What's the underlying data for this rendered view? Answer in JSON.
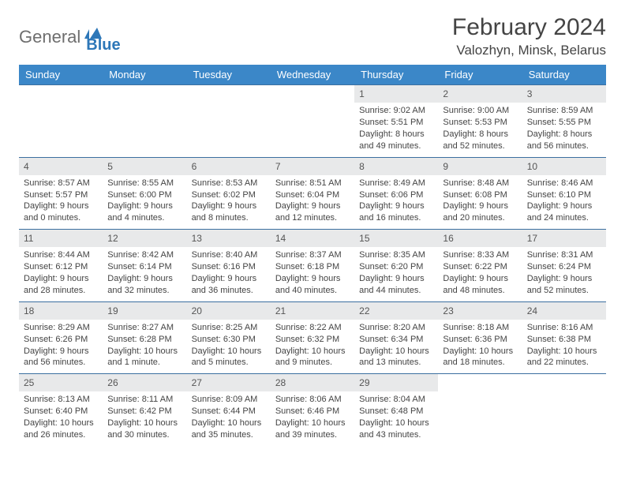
{
  "logo": {
    "part1": "General",
    "part2": "Blue"
  },
  "title": "February 2024",
  "location": "Valozhyn, Minsk, Belarus",
  "colors": {
    "header_bg": "#3b87c8",
    "row_border": "#3b6fa0",
    "daynum_bg": "#e8e9ea",
    "logo_gray": "#6e6e6e",
    "logo_blue": "#2d77b8"
  },
  "weekdays": [
    "Sunday",
    "Monday",
    "Tuesday",
    "Wednesday",
    "Thursday",
    "Friday",
    "Saturday"
  ],
  "weeks": [
    [
      null,
      null,
      null,
      null,
      {
        "n": "1",
        "sr": "Sunrise: 9:02 AM",
        "ss": "Sunset: 5:51 PM",
        "d1": "Daylight: 8 hours",
        "d2": "and 49 minutes."
      },
      {
        "n": "2",
        "sr": "Sunrise: 9:00 AM",
        "ss": "Sunset: 5:53 PM",
        "d1": "Daylight: 8 hours",
        "d2": "and 52 minutes."
      },
      {
        "n": "3",
        "sr": "Sunrise: 8:59 AM",
        "ss": "Sunset: 5:55 PM",
        "d1": "Daylight: 8 hours",
        "d2": "and 56 minutes."
      }
    ],
    [
      {
        "n": "4",
        "sr": "Sunrise: 8:57 AM",
        "ss": "Sunset: 5:57 PM",
        "d1": "Daylight: 9 hours",
        "d2": "and 0 minutes."
      },
      {
        "n": "5",
        "sr": "Sunrise: 8:55 AM",
        "ss": "Sunset: 6:00 PM",
        "d1": "Daylight: 9 hours",
        "d2": "and 4 minutes."
      },
      {
        "n": "6",
        "sr": "Sunrise: 8:53 AM",
        "ss": "Sunset: 6:02 PM",
        "d1": "Daylight: 9 hours",
        "d2": "and 8 minutes."
      },
      {
        "n": "7",
        "sr": "Sunrise: 8:51 AM",
        "ss": "Sunset: 6:04 PM",
        "d1": "Daylight: 9 hours",
        "d2": "and 12 minutes."
      },
      {
        "n": "8",
        "sr": "Sunrise: 8:49 AM",
        "ss": "Sunset: 6:06 PM",
        "d1": "Daylight: 9 hours",
        "d2": "and 16 minutes."
      },
      {
        "n": "9",
        "sr": "Sunrise: 8:48 AM",
        "ss": "Sunset: 6:08 PM",
        "d1": "Daylight: 9 hours",
        "d2": "and 20 minutes."
      },
      {
        "n": "10",
        "sr": "Sunrise: 8:46 AM",
        "ss": "Sunset: 6:10 PM",
        "d1": "Daylight: 9 hours",
        "d2": "and 24 minutes."
      }
    ],
    [
      {
        "n": "11",
        "sr": "Sunrise: 8:44 AM",
        "ss": "Sunset: 6:12 PM",
        "d1": "Daylight: 9 hours",
        "d2": "and 28 minutes."
      },
      {
        "n": "12",
        "sr": "Sunrise: 8:42 AM",
        "ss": "Sunset: 6:14 PM",
        "d1": "Daylight: 9 hours",
        "d2": "and 32 minutes."
      },
      {
        "n": "13",
        "sr": "Sunrise: 8:40 AM",
        "ss": "Sunset: 6:16 PM",
        "d1": "Daylight: 9 hours",
        "d2": "and 36 minutes."
      },
      {
        "n": "14",
        "sr": "Sunrise: 8:37 AM",
        "ss": "Sunset: 6:18 PM",
        "d1": "Daylight: 9 hours",
        "d2": "and 40 minutes."
      },
      {
        "n": "15",
        "sr": "Sunrise: 8:35 AM",
        "ss": "Sunset: 6:20 PM",
        "d1": "Daylight: 9 hours",
        "d2": "and 44 minutes."
      },
      {
        "n": "16",
        "sr": "Sunrise: 8:33 AM",
        "ss": "Sunset: 6:22 PM",
        "d1": "Daylight: 9 hours",
        "d2": "and 48 minutes."
      },
      {
        "n": "17",
        "sr": "Sunrise: 8:31 AM",
        "ss": "Sunset: 6:24 PM",
        "d1": "Daylight: 9 hours",
        "d2": "and 52 minutes."
      }
    ],
    [
      {
        "n": "18",
        "sr": "Sunrise: 8:29 AM",
        "ss": "Sunset: 6:26 PM",
        "d1": "Daylight: 9 hours",
        "d2": "and 56 minutes."
      },
      {
        "n": "19",
        "sr": "Sunrise: 8:27 AM",
        "ss": "Sunset: 6:28 PM",
        "d1": "Daylight: 10 hours",
        "d2": "and 1 minute."
      },
      {
        "n": "20",
        "sr": "Sunrise: 8:25 AM",
        "ss": "Sunset: 6:30 PM",
        "d1": "Daylight: 10 hours",
        "d2": "and 5 minutes."
      },
      {
        "n": "21",
        "sr": "Sunrise: 8:22 AM",
        "ss": "Sunset: 6:32 PM",
        "d1": "Daylight: 10 hours",
        "d2": "and 9 minutes."
      },
      {
        "n": "22",
        "sr": "Sunrise: 8:20 AM",
        "ss": "Sunset: 6:34 PM",
        "d1": "Daylight: 10 hours",
        "d2": "and 13 minutes."
      },
      {
        "n": "23",
        "sr": "Sunrise: 8:18 AM",
        "ss": "Sunset: 6:36 PM",
        "d1": "Daylight: 10 hours",
        "d2": "and 18 minutes."
      },
      {
        "n": "24",
        "sr": "Sunrise: 8:16 AM",
        "ss": "Sunset: 6:38 PM",
        "d1": "Daylight: 10 hours",
        "d2": "and 22 minutes."
      }
    ],
    [
      {
        "n": "25",
        "sr": "Sunrise: 8:13 AM",
        "ss": "Sunset: 6:40 PM",
        "d1": "Daylight: 10 hours",
        "d2": "and 26 minutes."
      },
      {
        "n": "26",
        "sr": "Sunrise: 8:11 AM",
        "ss": "Sunset: 6:42 PM",
        "d1": "Daylight: 10 hours",
        "d2": "and 30 minutes."
      },
      {
        "n": "27",
        "sr": "Sunrise: 8:09 AM",
        "ss": "Sunset: 6:44 PM",
        "d1": "Daylight: 10 hours",
        "d2": "and 35 minutes."
      },
      {
        "n": "28",
        "sr": "Sunrise: 8:06 AM",
        "ss": "Sunset: 6:46 PM",
        "d1": "Daylight: 10 hours",
        "d2": "and 39 minutes."
      },
      {
        "n": "29",
        "sr": "Sunrise: 8:04 AM",
        "ss": "Sunset: 6:48 PM",
        "d1": "Daylight: 10 hours",
        "d2": "and 43 minutes."
      },
      null,
      null
    ]
  ]
}
